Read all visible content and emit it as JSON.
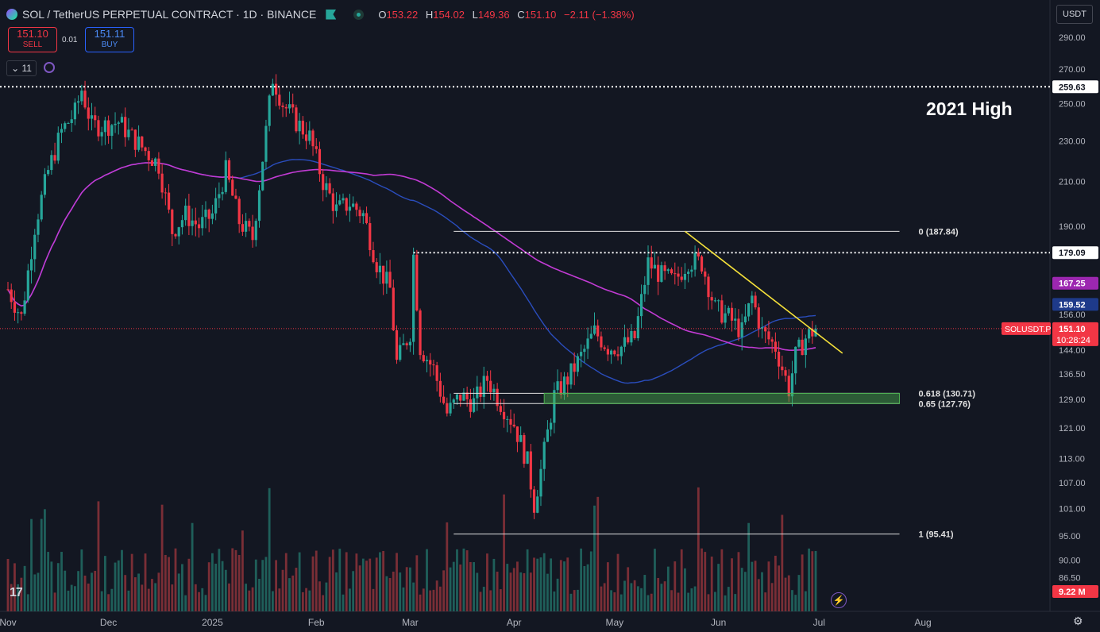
{
  "header": {
    "symbol": "SOL / TetherUS PERPETUAL CONTRACT · 1D · BINANCE",
    "ohlc": {
      "o": "153.22",
      "h": "154.02",
      "l": "149.36",
      "c": "151.10",
      "change": "−2.11 (−1.38%)"
    }
  },
  "trade": {
    "sell_price": "151.10",
    "sell_label": "SELL",
    "spread": "0.01",
    "buy_price": "151.11",
    "buy_label": "BUY"
  },
  "indicators_count": "11",
  "currency": "USDT",
  "annotation": "2021 High",
  "colors": {
    "background": "#131722",
    "up": "#26a69a",
    "down": "#f23645",
    "ma_purple": "#c23bd4",
    "ma_blue": "#2a4dbd",
    "trendline": "#f5e13a",
    "zone": "#4caf50"
  },
  "chart_data": {
    "type": "candlestick",
    "title": "SOL / TetherUS PERPETUAL CONTRACT · 1D · BINANCE",
    "x_tick_labels": [
      "Nov",
      "Dec",
      "2025",
      "Feb",
      "Mar",
      "Apr",
      "May",
      "Jun",
      "Jul",
      "Aug"
    ],
    "x_tick_dates": [
      "2024-11-01",
      "2024-12-01",
      "2025-01-01",
      "2025-02-01",
      "2025-03-01",
      "2025-04-01",
      "2025-05-01",
      "2025-06-01",
      "2025-07-01",
      "2025-08-01"
    ],
    "y_tick_labels": [
      "290.00",
      "270.00",
      "250.00",
      "230.00",
      "210.00",
      "190.00",
      "167.25",
      "156.00",
      "144.00",
      "136.50",
      "129.00",
      "121.00",
      "113.00",
      "107.00",
      "101.00",
      "95.00",
      "90.00",
      "86.50"
    ],
    "y_scale": "log",
    "ylim": [
      84,
      300
    ],
    "close_series": [
      [
        "2024-11-01",
        165
      ],
      [
        "2024-11-05",
        155
      ],
      [
        "2024-11-09",
        190
      ],
      [
        "2024-11-13",
        215
      ],
      [
        "2024-11-17",
        235
      ],
      [
        "2024-11-21",
        245
      ],
      [
        "2024-11-23",
        258
      ],
      [
        "2024-11-26",
        238
      ],
      [
        "2024-11-30",
        238
      ],
      [
        "2024-12-04",
        240
      ],
      [
        "2024-12-08",
        232
      ],
      [
        "2024-12-12",
        225
      ],
      [
        "2024-12-16",
        218
      ],
      [
        "2024-12-20",
        188
      ],
      [
        "2024-12-24",
        195
      ],
      [
        "2024-12-28",
        190
      ],
      [
        "2025-01-01",
        195
      ],
      [
        "2025-01-05",
        215
      ],
      [
        "2025-01-09",
        192
      ],
      [
        "2025-01-13",
        185
      ],
      [
        "2025-01-17",
        235
      ],
      [
        "2025-01-19",
        265
      ],
      [
        "2025-01-22",
        250
      ],
      [
        "2025-01-26",
        240
      ],
      [
        "2025-01-30",
        232
      ],
      [
        "2025-02-03",
        210
      ],
      [
        "2025-02-07",
        197
      ],
      [
        "2025-02-11",
        200
      ],
      [
        "2025-02-15",
        195
      ],
      [
        "2025-02-19",
        175
      ],
      [
        "2025-02-23",
        165
      ],
      [
        "2025-02-25",
        140
      ],
      [
        "2025-03-01",
        150
      ],
      [
        "2025-03-02",
        178
      ],
      [
        "2025-03-04",
        145
      ],
      [
        "2025-03-08",
        138
      ],
      [
        "2025-03-12",
        125
      ],
      [
        "2025-03-16",
        130
      ],
      [
        "2025-03-20",
        128
      ],
      [
        "2025-03-24",
        135
      ],
      [
        "2025-03-28",
        128
      ],
      [
        "2025-04-01",
        122
      ],
      [
        "2025-04-05",
        112
      ],
      [
        "2025-04-07",
        102
      ],
      [
        "2025-04-09",
        110
      ],
      [
        "2025-04-13",
        130
      ],
      [
        "2025-04-17",
        135
      ],
      [
        "2025-04-21",
        142
      ],
      [
        "2025-04-25",
        150
      ],
      [
        "2025-04-29",
        145
      ],
      [
        "2025-05-03",
        145
      ],
      [
        "2025-05-07",
        148
      ],
      [
        "2025-05-11",
        175
      ],
      [
        "2025-05-15",
        170
      ],
      [
        "2025-05-19",
        168
      ],
      [
        "2025-05-23",
        176
      ],
      [
        "2025-05-27",
        175
      ],
      [
        "2025-05-31",
        158
      ],
      [
        "2025-06-04",
        155
      ],
      [
        "2025-06-08",
        150
      ],
      [
        "2025-06-11",
        162
      ],
      [
        "2025-06-14",
        150
      ],
      [
        "2025-06-18",
        145
      ],
      [
        "2025-06-22",
        132
      ],
      [
        "2025-06-24",
        142
      ],
      [
        "2025-06-27",
        148
      ],
      [
        "2025-06-30",
        151.1
      ]
    ],
    "series": [
      {
        "type": "moving_average",
        "color": "purple",
        "last_value": 167.25
      },
      {
        "type": "moving_average",
        "color": "blue",
        "last_value": 159.52
      }
    ],
    "price_labels": [
      {
        "label": "259.63",
        "value": 259.63,
        "style": "dotted-horizontal"
      },
      {
        "label": "179.09",
        "value": 179.09,
        "style": "dotted-horizontal"
      },
      {
        "label": "167.25",
        "value": 167.25
      },
      {
        "label": "159.52",
        "value": 159.52
      },
      {
        "label": "151.10",
        "value": 151.1,
        "symbol_tag": "SOLUSDT.P",
        "countdown": "10:28:24"
      },
      {
        "label": "9.22 M",
        "value": 9.22,
        "kind": "volume"
      }
    ],
    "fibonacci": [
      {
        "label": "0 (187.84)",
        "value": 187.84
      },
      {
        "label": "0.618 (130.71)",
        "value": 130.71
      },
      {
        "label": "0.65 (127.76)",
        "value": 127.76
      },
      {
        "label": "1 (95.41)",
        "value": 95.41
      }
    ],
    "trendline": {
      "from": [
        "2025-05-22",
        187.84
      ],
      "to": [
        "2025-07-08",
        143
      ]
    },
    "zone": {
      "from_date": "2025-04-10",
      "to_date": "2025-07-25",
      "low": 127.76,
      "high": 130.71
    },
    "grid": false,
    "legend": "none"
  }
}
